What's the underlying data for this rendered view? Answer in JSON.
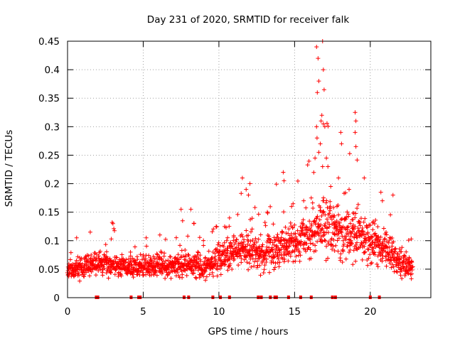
{
  "chart_data": {
    "type": "scatter",
    "title": "Day 231 of 2020, SRMTID for receiver falk",
    "xlabel": "GPS time / hours",
    "ylabel": "SRMTID / TECUs",
    "xlim": [
      0,
      24
    ],
    "ylim": [
      0,
      0.45
    ],
    "xticks": [
      0,
      5,
      10,
      15,
      20
    ],
    "xtick_labels": [
      "0",
      "5",
      "10",
      "15",
      "20"
    ],
    "yticks": [
      0,
      0.05,
      0.1,
      0.15,
      0.2,
      0.25,
      0.3,
      0.35,
      0.4,
      0.45
    ],
    "ytick_labels": [
      "0",
      "0.05",
      "0.1",
      "0.15",
      "0.2",
      "0.25",
      "0.3",
      "0.35",
      "0.4",
      "0.45"
    ],
    "grid": true,
    "marker": "+",
    "color": "#ff0000",
    "zero_marks_x": [
      1.9,
      2.0,
      4.2,
      4.7,
      4.8,
      7.7,
      8.0,
      9.6,
      10.1,
      10.7,
      12.6,
      12.8,
      13.4,
      13.7,
      13.8,
      14.6,
      15.4,
      16.1,
      17.5,
      17.7,
      20.0,
      20.6
    ],
    "noise_seed": 231,
    "envelope": [
      {
        "x": 0.0,
        "base": 0.045,
        "spread": 0.028,
        "spike": 0.08
      },
      {
        "x": 1.0,
        "base": 0.055,
        "spread": 0.03,
        "spike": 0.1
      },
      {
        "x": 2.0,
        "base": 0.06,
        "spread": 0.028,
        "spike": 0.1
      },
      {
        "x": 3.0,
        "base": 0.058,
        "spread": 0.03,
        "spike": 0.13
      },
      {
        "x": 4.0,
        "base": 0.05,
        "spread": 0.025,
        "spike": 0.09
      },
      {
        "x": 5.0,
        "base": 0.055,
        "spread": 0.03,
        "spike": 0.11
      },
      {
        "x": 6.0,
        "base": 0.057,
        "spread": 0.03,
        "spike": 0.1
      },
      {
        "x": 7.0,
        "base": 0.055,
        "spread": 0.032,
        "spike": 0.13
      },
      {
        "x": 8.0,
        "base": 0.06,
        "spread": 0.035,
        "spike": 0.15
      },
      {
        "x": 9.0,
        "base": 0.055,
        "spread": 0.035,
        "spike": 0.13
      },
      {
        "x": 10.0,
        "base": 0.065,
        "spread": 0.035,
        "spike": 0.14
      },
      {
        "x": 11.0,
        "base": 0.085,
        "spread": 0.04,
        "spike": 0.21
      },
      {
        "x": 12.0,
        "base": 0.085,
        "spread": 0.04,
        "spike": 0.18
      },
      {
        "x": 13.0,
        "base": 0.075,
        "spread": 0.045,
        "spike": 0.15
      },
      {
        "x": 14.0,
        "base": 0.09,
        "spread": 0.045,
        "spike": 0.22
      },
      {
        "x": 15.0,
        "base": 0.095,
        "spread": 0.05,
        "spike": 0.19
      },
      {
        "x": 16.0,
        "base": 0.11,
        "spread": 0.06,
        "spike": 0.26
      },
      {
        "x": 16.7,
        "base": 0.13,
        "spread": 0.08,
        "spike": 0.45
      },
      {
        "x": 17.0,
        "base": 0.125,
        "spread": 0.075,
        "spike": 0.38
      },
      {
        "x": 18.0,
        "base": 0.11,
        "spread": 0.06,
        "spike": 0.29
      },
      {
        "x": 19.0,
        "base": 0.115,
        "spread": 0.065,
        "spike": 0.33
      },
      {
        "x": 19.5,
        "base": 0.11,
        "spread": 0.055,
        "spike": 0.23
      },
      {
        "x": 20.0,
        "base": 0.095,
        "spread": 0.05,
        "spike": 0.18
      },
      {
        "x": 21.0,
        "base": 0.09,
        "spread": 0.045,
        "spike": 0.18
      },
      {
        "x": 22.0,
        "base": 0.06,
        "spread": 0.035,
        "spike": 0.13
      },
      {
        "x": 22.8,
        "base": 0.05,
        "spread": 0.03,
        "spike": 0.1
      }
    ],
    "point_interval_hours": 0.0125,
    "points": [
      [
        16.45,
        0.44
      ],
      [
        16.55,
        0.42
      ],
      [
        16.85,
        0.45
      ],
      [
        16.9,
        0.4
      ],
      [
        16.95,
        0.365
      ],
      [
        16.6,
        0.38
      ],
      [
        16.5,
        0.36
      ],
      [
        16.45,
        0.3
      ],
      [
        16.75,
        0.31
      ],
      [
        16.8,
        0.32
      ],
      [
        16.9,
        0.305
      ],
      [
        19.0,
        0.325
      ],
      [
        19.05,
        0.31
      ],
      [
        19.0,
        0.29
      ],
      [
        18.05,
        0.29
      ],
      [
        18.1,
        0.27
      ],
      [
        19.05,
        0.265
      ],
      [
        16.7,
        0.27
      ],
      [
        16.35,
        0.245
      ],
      [
        16.6,
        0.255
      ],
      [
        17.1,
        0.245
      ],
      [
        17.2,
        0.23
      ],
      [
        16.85,
        0.23
      ],
      [
        14.25,
        0.22
      ],
      [
        14.3,
        0.205
      ],
      [
        11.55,
        0.21
      ],
      [
        11.8,
        0.19
      ],
      [
        11.95,
        0.18
      ],
      [
        12.05,
        0.2
      ],
      [
        20.7,
        0.185
      ],
      [
        21.5,
        0.18
      ],
      [
        20.8,
        0.17
      ],
      [
        19.6,
        0.21
      ],
      [
        18.6,
        0.19
      ],
      [
        17.9,
        0.21
      ],
      [
        3.0,
        0.13
      ],
      [
        2.95,
        0.132
      ],
      [
        7.5,
        0.155
      ],
      [
        8.15,
        0.155
      ],
      [
        8.35,
        0.13
      ],
      [
        7.6,
        0.135
      ],
      [
        10.7,
        0.14
      ],
      [
        13.2,
        0.15
      ],
      [
        14.8,
        0.16
      ],
      [
        15.6,
        0.17
      ],
      [
        16.1,
        0.175
      ],
      [
        0.6,
        0.105
      ],
      [
        1.5,
        0.115
      ],
      [
        5.2,
        0.105
      ],
      [
        6.1,
        0.11
      ]
    ]
  }
}
